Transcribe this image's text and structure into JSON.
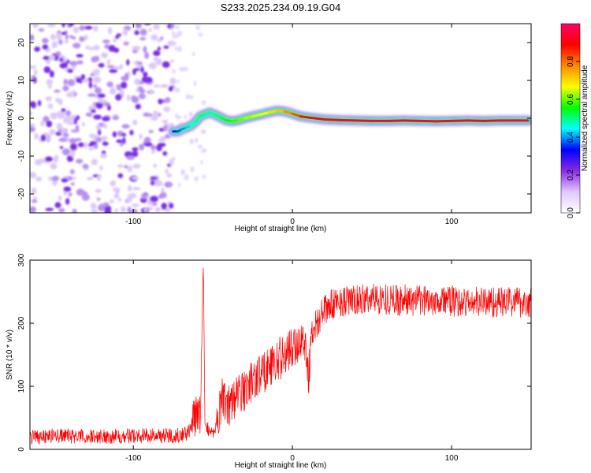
{
  "figure_title": "S233.2025.234.09.19.G04",
  "chart_data": [
    {
      "type": "heatmap",
      "title": "S233.2025.234.09.19.G04",
      "xlabel": "Height of straight line (km)",
      "ylabel": "Frequency (Hz)",
      "xlim": [
        -165,
        150
      ],
      "ylim": [
        -25,
        25
      ],
      "x_ticks": [
        -100,
        0,
        100
      ],
      "y_ticks": [
        -20,
        -10,
        0,
        10,
        20
      ],
      "noise_region": {
        "x_range": [
          -165,
          -75
        ],
        "y_range": [
          -25,
          25
        ],
        "amplitude": 0.1
      },
      "sparse_region": {
        "x_range": [
          -75,
          -55
        ],
        "y_range": [
          -20,
          25
        ],
        "amplitude": 0.05
      },
      "ridge_x": [
        -75,
        -72,
        -70,
        -67,
        -64,
        -61,
        -58,
        -55,
        -52,
        -48,
        -45,
        -42,
        -38,
        -34,
        -30,
        -25,
        -20,
        -15,
        -10,
        -5,
        0,
        5,
        10,
        20,
        30,
        40,
        50,
        60,
        70,
        80,
        90,
        100,
        110,
        120,
        130,
        140,
        148
      ],
      "ridge_freq": [
        -3.5,
        -3.5,
        -3,
        -2.5,
        -2,
        -1,
        0.5,
        1,
        1.5,
        0.8,
        0.2,
        -0.5,
        -0.8,
        -0.5,
        0,
        0.5,
        1,
        1.5,
        2,
        1.8,
        1.2,
        0.5,
        0.2,
        -0.3,
        -0.5,
        -0.6,
        -0.7,
        -0.7,
        -0.6,
        -0.7,
        -0.8,
        -0.7,
        -0.6,
        -0.7,
        -0.6,
        -0.6,
        -0.6
      ],
      "ridge_amplitude": [
        0.35,
        0.35,
        0.4,
        0.4,
        0.45,
        0.45,
        0.5,
        0.5,
        0.45,
        0.5,
        0.5,
        0.55,
        0.55,
        0.6,
        0.6,
        0.65,
        0.65,
        0.7,
        0.7,
        0.75,
        0.8,
        0.85,
        0.9,
        0.95,
        0.95,
        0.95,
        0.95,
        0.95,
        0.95,
        0.95,
        0.95,
        0.95,
        0.95,
        0.95,
        0.95,
        0.95,
        0.95
      ],
      "colorbar": {
        "label": "Normalized spectral amplitude",
        "range": [
          0,
          1
        ],
        "ticks": [
          "0.0",
          "0.2",
          "0.4",
          "0.6",
          "0.8"
        ],
        "colors": [
          "#ffffff",
          "#e0c8ff",
          "#8a2be2",
          "#0000ff",
          "#00ffff",
          "#00ff00",
          "#ffff00",
          "#ff8800",
          "#ff0000",
          "#ff0066"
        ]
      }
    },
    {
      "type": "line",
      "title": "",
      "xlabel": "Height of straight line (km)",
      "ylabel": "SNR (10 * v/v)",
      "xlim": [
        -165,
        150
      ],
      "ylim": [
        0,
        300
      ],
      "x_ticks": [
        -100,
        0,
        100
      ],
      "y_ticks": [
        0,
        100,
        200,
        300
      ],
      "color": "#ff0000",
      "series": [
        {
          "name": "SNR",
          "x": [
            -165,
            -150,
            -130,
            -110,
            -90,
            -75,
            -66,
            -62,
            -58,
            -56,
            -55,
            -53,
            -50,
            -47,
            -44,
            -42,
            -40,
            -35,
            -30,
            -25,
            -20,
            -15,
            -10,
            -5,
            0,
            5,
            8,
            10,
            12,
            15,
            20,
            25,
            30,
            40,
            50,
            60,
            70,
            80,
            90,
            100,
            110,
            120,
            130,
            140,
            150
          ],
          "y": [
            20,
            22,
            20,
            21,
            22,
            22,
            25,
            45,
            60,
            300,
            40,
            30,
            25,
            45,
            90,
            75,
            70,
            85,
            95,
            110,
            120,
            130,
            140,
            150,
            160,
            170,
            175,
            110,
            185,
            200,
            220,
            230,
            235,
            235,
            240,
            238,
            237,
            235,
            238,
            235,
            232,
            235,
            233,
            235,
            232
          ]
        }
      ]
    }
  ]
}
